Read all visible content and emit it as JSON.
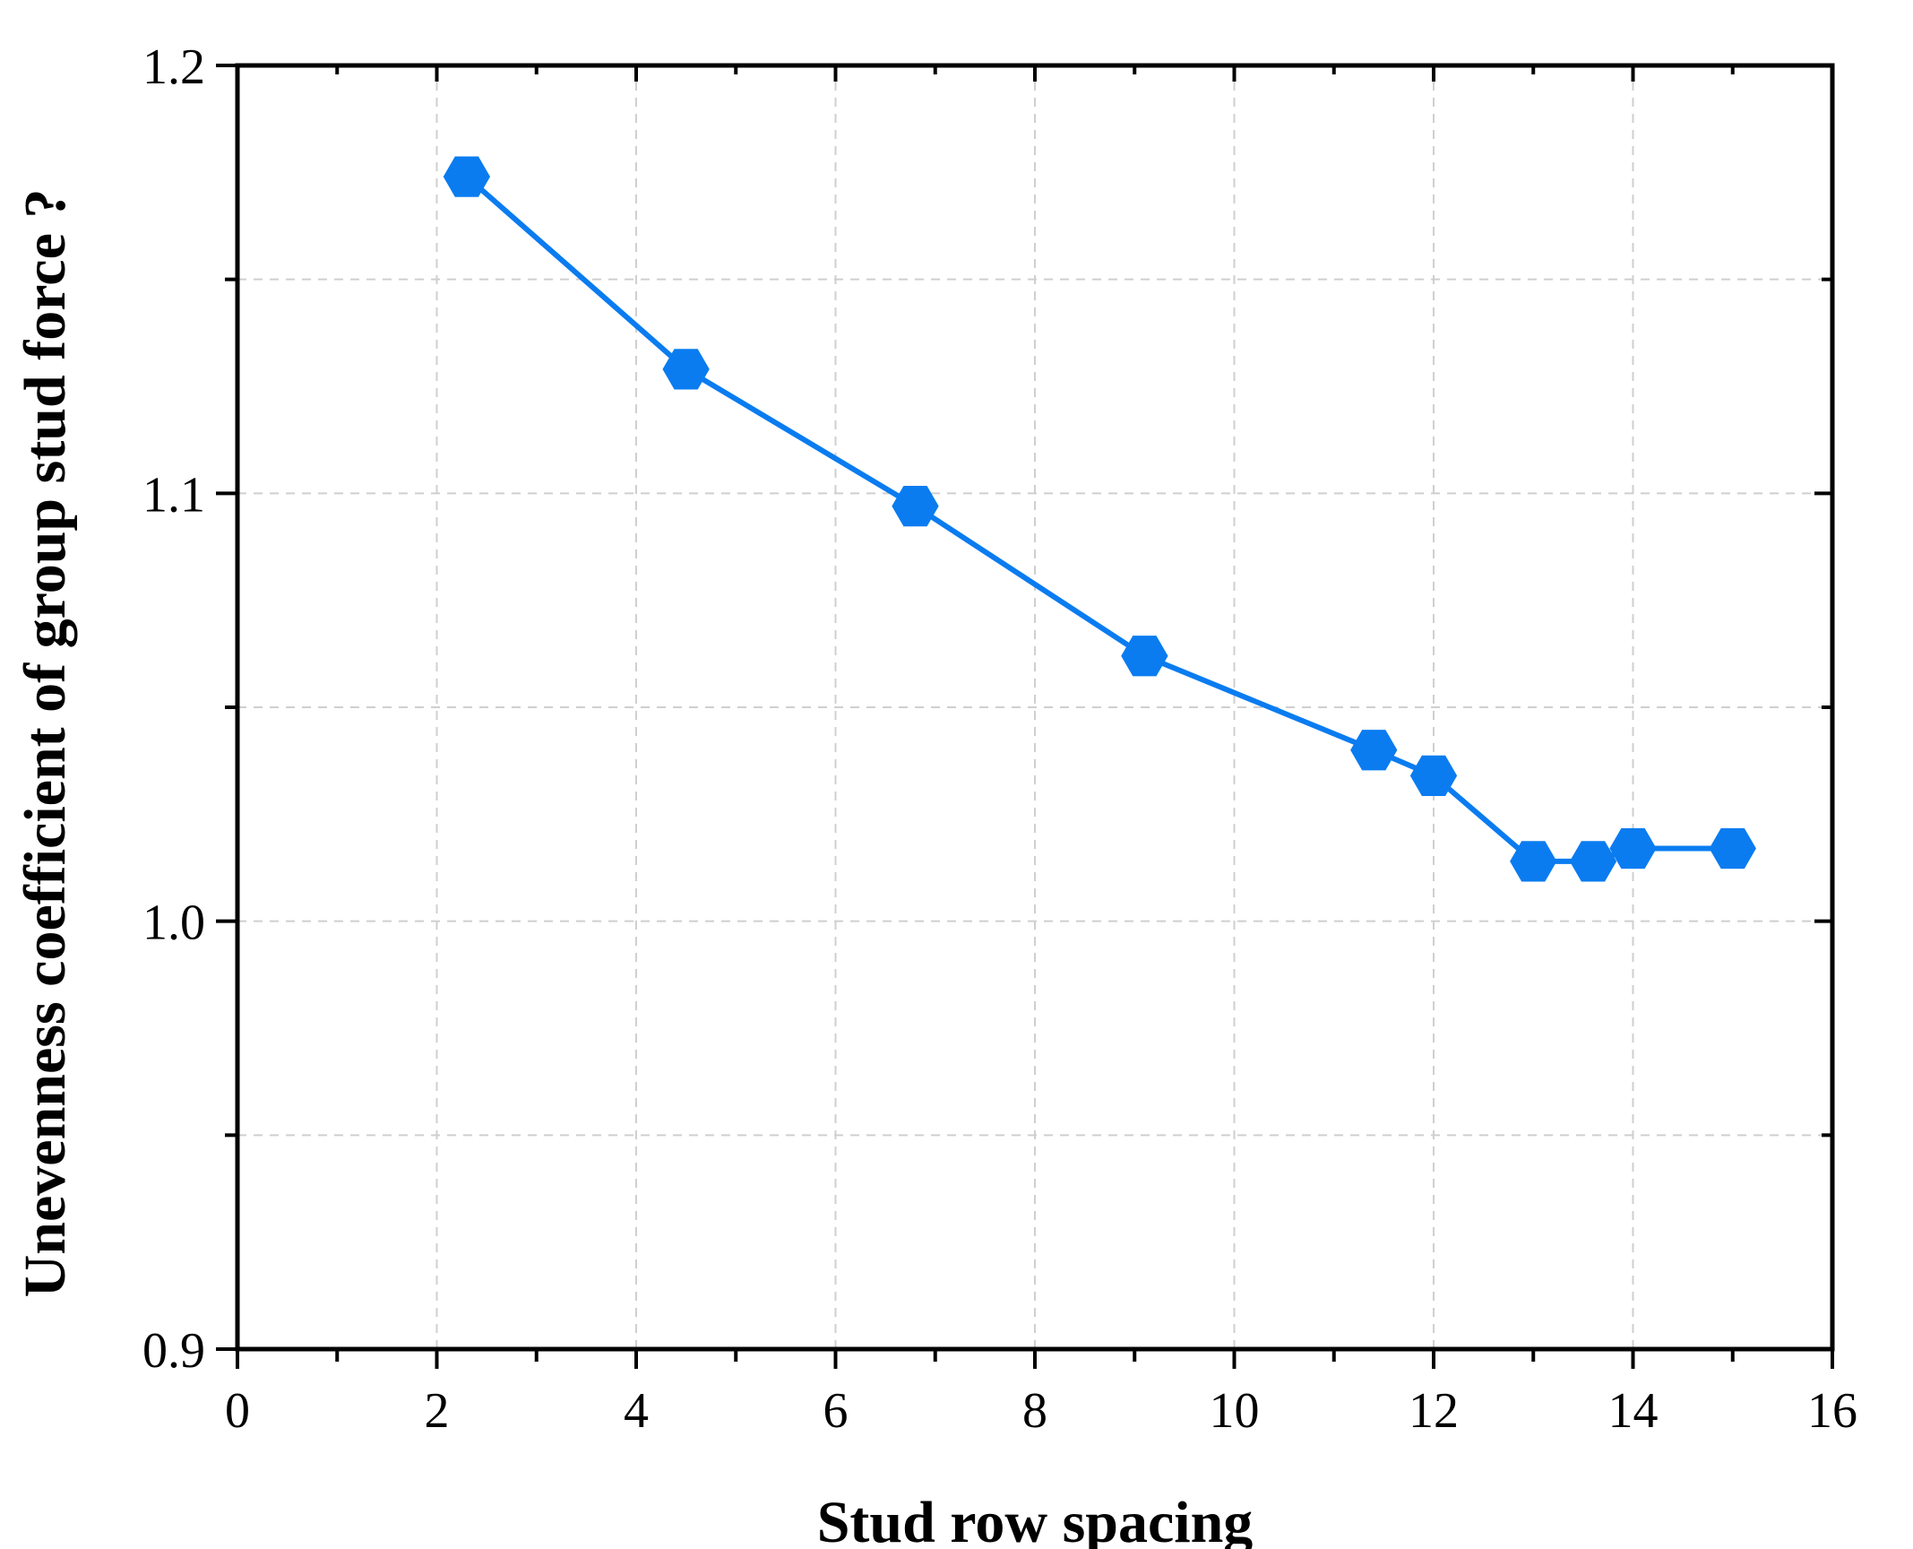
{
  "chart_data": {
    "type": "line",
    "xlabel": "Stud row spacing",
    "ylabel": "Unevenness coefficient of group stud force ?",
    "xlim": [
      0,
      16
    ],
    "ylim": [
      0.9,
      1.2
    ],
    "x_ticks": [
      0,
      2,
      4,
      6,
      8,
      10,
      12,
      14,
      16
    ],
    "x_tick_labels": [
      "0",
      "2",
      "4",
      "6",
      "8",
      "10",
      "12",
      "14",
      "16"
    ],
    "y_ticks": [
      0.9,
      1.0,
      1.1,
      1.2
    ],
    "y_tick_labels": [
      "0.9",
      "1.0",
      "1.1",
      "1.2"
    ],
    "y_minor_ticks": [
      0.95,
      1.05,
      1.15
    ],
    "x_minor_ticks": [
      1,
      3,
      5,
      7,
      9,
      11,
      13,
      15
    ],
    "grid": true,
    "series": [
      {
        "color": "#0a7cf0",
        "marker": "hexagon",
        "points": [
          {
            "x": 2.3,
            "y": 1.174
          },
          {
            "x": 4.5,
            "y": 1.129
          },
          {
            "x": 6.8,
            "y": 1.097
          },
          {
            "x": 9.1,
            "y": 1.062
          },
          {
            "x": 11.4,
            "y": 1.04
          },
          {
            "x": 12.0,
            "y": 1.034
          },
          {
            "x": 13.0,
            "y": 1.014
          },
          {
            "x": 13.6,
            "y": 1.014
          },
          {
            "x": 14.0,
            "y": 1.017
          },
          {
            "x": 15.0,
            "y": 1.017
          }
        ]
      }
    ]
  }
}
